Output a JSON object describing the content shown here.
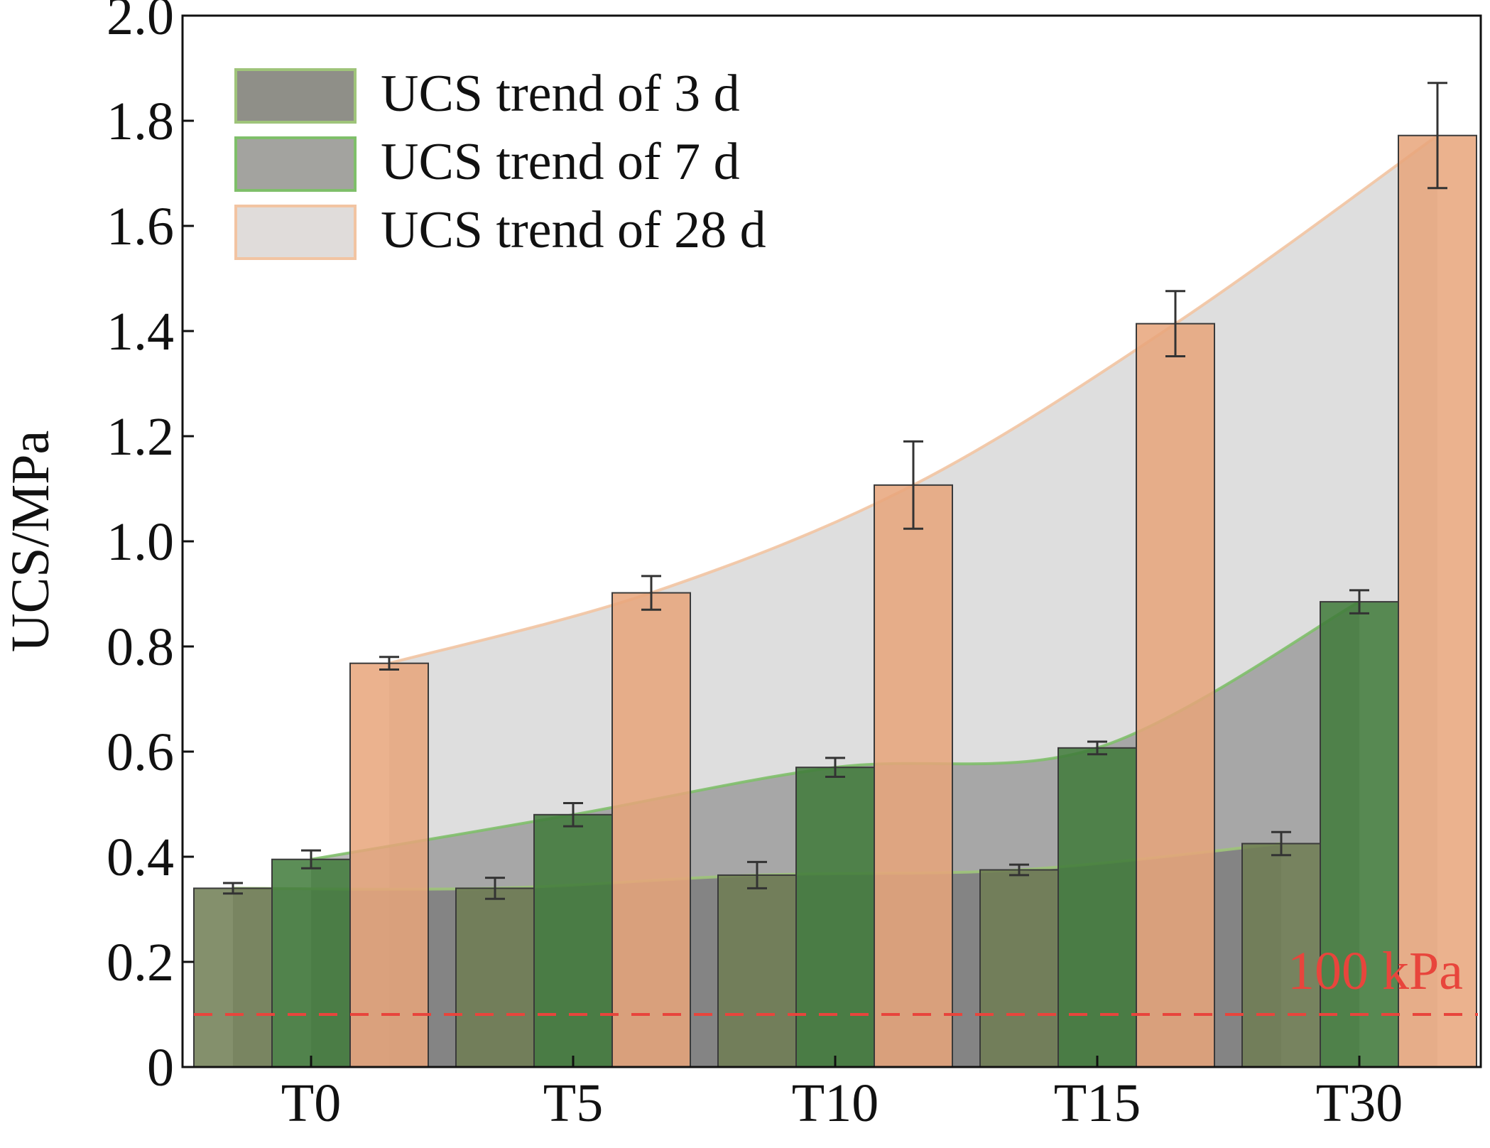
{
  "chart_data": {
    "type": "bar",
    "title": "",
    "xlabel": "",
    "ylabel": "UCS/MPa",
    "ylim": [
      0,
      2.0
    ],
    "yticks": [
      "0",
      "0.2",
      "0.4",
      "0.6",
      "0.8",
      "1.0",
      "1.2",
      "1.4",
      "1.6",
      "1.8",
      "2.0"
    ],
    "categories": [
      "T0",
      "T5",
      "T10",
      "T15",
      "T30"
    ],
    "series": [
      {
        "color": "#6f7d52",
        "values": [
          0.34,
          0.34,
          0.365,
          0.375,
          0.425
        ],
        "errors": [
          0.01,
          0.02,
          0.025,
          0.01,
          0.022
        ]
      },
      {
        "color": "#3f7a3a",
        "values": [
          0.395,
          0.48,
          0.57,
          0.607,
          0.885
        ],
        "errors": [
          0.017,
          0.022,
          0.018,
          0.012,
          0.022
        ]
      },
      {
        "color": "#e8a47a",
        "values": [
          0.768,
          0.902,
          1.107,
          1.414,
          1.772
        ],
        "errors": [
          0.012,
          0.032,
          0.083,
          0.062,
          0.1
        ]
      }
    ],
    "trends": [
      {
        "name": "UCS trend of 3 d",
        "series_index": 0,
        "edge_color": "#9fc47a"
      },
      {
        "name": "UCS trend of 7 d",
        "series_index": 1,
        "edge_color": "#7fbf6a"
      },
      {
        "name": "UCS trend of 28 d",
        "series_index": 2,
        "edge_color": "#f2c4a2"
      }
    ],
    "reference_line": {
      "value": 0.1,
      "label": "100 kPa",
      "color": "#e8453c"
    },
    "legend_position": "top-left",
    "grid": false
  }
}
